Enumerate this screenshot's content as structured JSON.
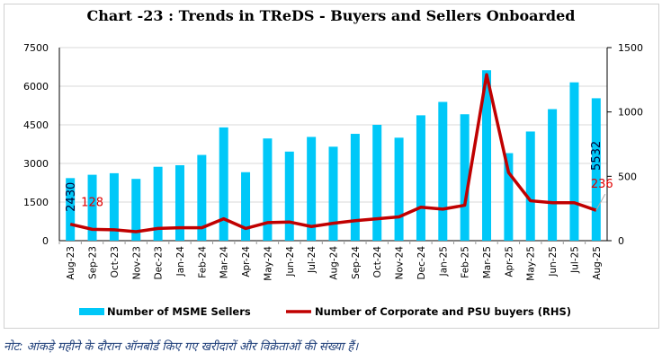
{
  "chart_data": {
    "type": "bar+line",
    "title": "Chart -23 : Trends in TReDS - Buyers and Sellers Onboarded",
    "categories": [
      "Aug-23",
      "Sep-23",
      "Oct-23",
      "Nov-23",
      "Dec-23",
      "Jan-24",
      "Feb-24",
      "Mar-24",
      "Apr-24",
      "May-24",
      "Jun-24",
      "Jul-24",
      "Aug-24",
      "Sep-24",
      "Oct-24",
      "Nov-24",
      "Dec-24",
      "Jan-25",
      "Feb-25",
      "Mar-25",
      "Apr-25",
      "May-25",
      "Jun-25",
      "Jul-25",
      "Aug-25"
    ],
    "series": [
      {
        "name": "Number of MSME Sellers",
        "type": "bar",
        "axis": "left",
        "color": "#00c8f8",
        "values": [
          2430,
          2560,
          2620,
          2400,
          2870,
          2930,
          3330,
          4400,
          2660,
          3970,
          3460,
          4030,
          3650,
          4150,
          4500,
          4000,
          4870,
          5390,
          4910,
          6620,
          3400,
          4240,
          5110,
          6150,
          5532
        ]
      },
      {
        "name": "Number of Corporate and PSU buyers (RHS)",
        "type": "line",
        "axis": "right",
        "color": "#c00000",
        "values": [
          128,
          88,
          85,
          70,
          95,
          100,
          100,
          170,
          95,
          140,
          145,
          110,
          135,
          155,
          170,
          185,
          260,
          245,
          275,
          1290,
          530,
          310,
          295,
          295,
          236
        ]
      }
    ],
    "ylim_left": [
      0,
      7500
    ],
    "yticks_left": [
      "0",
      "1500",
      "3000",
      "4500",
      "6000",
      "7500"
    ],
    "ylim_right": [
      0,
      1500
    ],
    "yticks_right": [
      "0",
      "500",
      "1000",
      "1500"
    ],
    "data_labels": {
      "first_bar": "2430",
      "last_bar": "5532",
      "first_line": "128",
      "last_line": "236"
    },
    "grid": true,
    "legend": "bottom"
  },
  "note": "नोट: आंकड़े महीने के दौरान ऑनबोर्ड किए गए खरीदारों और विक्रेताओं की संख्या हैं।"
}
